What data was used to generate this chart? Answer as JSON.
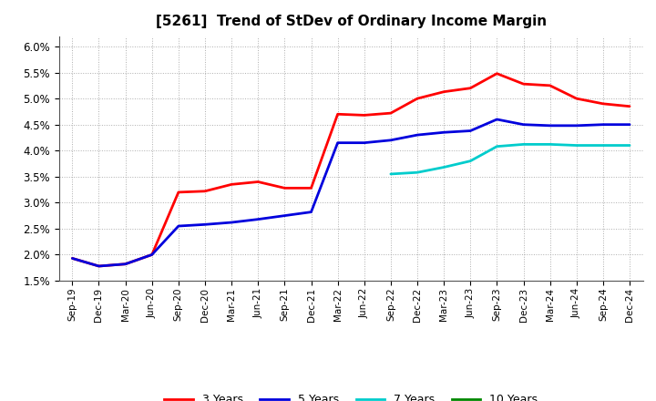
{
  "title": "[5261]  Trend of StDev of Ordinary Income Margin",
  "title_fontsize": 11,
  "background_color": "#ffffff",
  "plot_bg_color": "#ffffff",
  "grid_color": "#999999",
  "ylim": [
    0.015,
    0.062
  ],
  "yticks": [
    0.015,
    0.02,
    0.025,
    0.03,
    0.035,
    0.04,
    0.045,
    0.05,
    0.055,
    0.06
  ],
  "x_labels": [
    "Sep-19",
    "Dec-19",
    "Mar-20",
    "Jun-20",
    "Sep-20",
    "Dec-20",
    "Mar-21",
    "Jun-21",
    "Sep-21",
    "Dec-21",
    "Mar-22",
    "Jun-22",
    "Sep-22",
    "Dec-22",
    "Mar-23",
    "Jun-23",
    "Sep-23",
    "Dec-23",
    "Mar-24",
    "Jun-24",
    "Sep-24",
    "Dec-24"
  ],
  "series": {
    "3 Years": {
      "color": "#ff0000",
      "linewidth": 2.0,
      "values": [
        0.0193,
        0.0178,
        0.0182,
        0.02,
        0.032,
        0.0322,
        0.0335,
        0.034,
        0.0328,
        0.0328,
        0.047,
        0.0468,
        0.0472,
        0.05,
        0.0513,
        0.052,
        0.0548,
        0.0528,
        0.0525,
        0.05,
        0.049,
        0.0485
      ]
    },
    "5 Years": {
      "color": "#0000dd",
      "linewidth": 2.0,
      "values": [
        0.0193,
        0.0178,
        0.0182,
        0.02,
        0.0255,
        0.0258,
        0.0262,
        0.0268,
        0.0275,
        0.0282,
        0.0415,
        0.0415,
        0.042,
        0.043,
        0.0435,
        0.0438,
        0.046,
        0.045,
        0.0448,
        0.0448,
        0.045,
        0.045
      ]
    },
    "7 Years": {
      "color": "#00cccc",
      "linewidth": 2.0,
      "values": [
        null,
        null,
        null,
        null,
        null,
        null,
        null,
        null,
        null,
        null,
        null,
        null,
        0.0355,
        0.0358,
        0.0368,
        0.038,
        0.0408,
        0.0412,
        0.0412,
        0.041,
        0.041,
        0.041
      ]
    },
    "10 Years": {
      "color": "#008800",
      "linewidth": 2.0,
      "values": [
        null,
        null,
        null,
        null,
        null,
        null,
        null,
        null,
        null,
        null,
        null,
        null,
        null,
        null,
        null,
        null,
        null,
        null,
        null,
        null,
        null,
        null
      ]
    }
  },
  "legend_labels": [
    "3 Years",
    "5 Years",
    "7 Years",
    "10 Years"
  ],
  "legend_colors": [
    "#ff0000",
    "#0000dd",
    "#00cccc",
    "#008800"
  ]
}
